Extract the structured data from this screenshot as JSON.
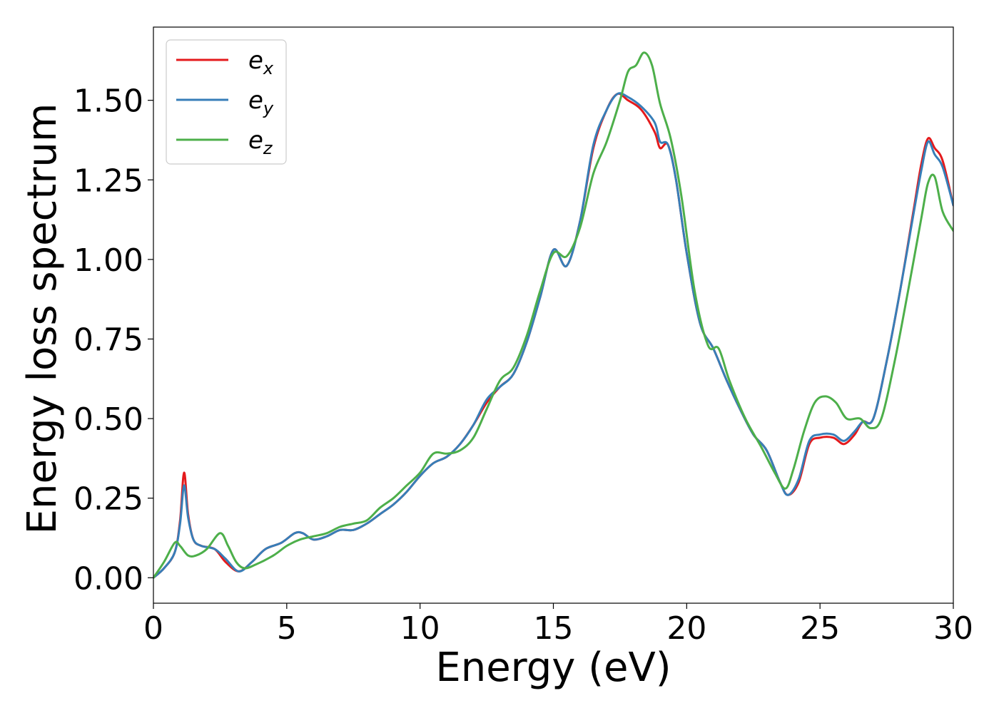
{
  "chart_data": {
    "type": "line",
    "title": "",
    "xlabel": "Energy (eV)",
    "ylabel": "Energy loss spectrum",
    "xlim": [
      0,
      30
    ],
    "ylim": [
      -0.08,
      1.73
    ],
    "x_ticks": [
      "0",
      "5",
      "10",
      "15",
      "20",
      "25",
      "30"
    ],
    "y_ticks": [
      "0.00",
      "0.25",
      "0.50",
      "0.75",
      "1.00",
      "1.25",
      "1.50"
    ],
    "grid": false,
    "legend_position": "top-left",
    "series": [
      {
        "name": "e_x",
        "label_base": "e",
        "label_sub": "x",
        "color": "#e41a1c",
        "x": [
          0,
          0.4,
          0.8,
          1.0,
          1.15,
          1.3,
          1.5,
          1.8,
          2.3,
          2.7,
          3.2,
          3.7,
          4.2,
          4.8,
          5.3,
          5.6,
          6.0,
          6.5,
          7.0,
          7.5,
          8.0,
          8.5,
          9.0,
          9.5,
          10.0,
          10.5,
          11.0,
          11.5,
          12.0,
          12.5,
          13.0,
          13.5,
          14.0,
          14.5,
          15.0,
          15.5,
          16.0,
          16.5,
          17.0,
          17.4,
          17.8,
          18.3,
          18.8,
          19.0,
          19.3,
          19.6,
          20.0,
          20.5,
          21.0,
          21.5,
          22.0,
          22.5,
          23.0,
          23.5,
          23.8,
          24.2,
          24.6,
          25.0,
          25.5,
          25.9,
          26.3,
          26.6,
          27.0,
          27.5,
          28.0,
          28.5,
          28.8,
          29.05,
          29.3,
          29.6,
          30.0
        ],
        "y": [
          0.0,
          0.03,
          0.08,
          0.18,
          0.33,
          0.2,
          0.12,
          0.1,
          0.09,
          0.05,
          0.02,
          0.05,
          0.09,
          0.11,
          0.14,
          0.14,
          0.12,
          0.13,
          0.15,
          0.15,
          0.17,
          0.2,
          0.23,
          0.27,
          0.32,
          0.36,
          0.38,
          0.42,
          0.48,
          0.55,
          0.6,
          0.64,
          0.74,
          0.88,
          1.03,
          0.98,
          1.12,
          1.35,
          1.47,
          1.52,
          1.5,
          1.47,
          1.4,
          1.35,
          1.36,
          1.25,
          1.02,
          0.8,
          0.72,
          0.62,
          0.53,
          0.45,
          0.4,
          0.3,
          0.26,
          0.3,
          0.42,
          0.44,
          0.44,
          0.42,
          0.45,
          0.49,
          0.5,
          0.68,
          0.9,
          1.15,
          1.3,
          1.38,
          1.35,
          1.31,
          1.17
        ]
      },
      {
        "name": "e_y",
        "label_base": "e",
        "label_sub": "y",
        "color": "#377eb8",
        "x": [
          0,
          0.4,
          0.8,
          1.0,
          1.15,
          1.3,
          1.5,
          1.8,
          2.3,
          2.7,
          3.2,
          3.7,
          4.2,
          4.8,
          5.3,
          5.6,
          6.0,
          6.5,
          7.0,
          7.5,
          8.0,
          8.5,
          9.0,
          9.5,
          10.0,
          10.5,
          11.0,
          11.5,
          12.0,
          12.5,
          13.0,
          13.5,
          14.0,
          14.5,
          15.0,
          15.5,
          16.0,
          16.5,
          17.0,
          17.4,
          17.8,
          18.3,
          18.8,
          19.0,
          19.3,
          19.6,
          20.0,
          20.5,
          21.0,
          21.5,
          22.0,
          22.5,
          23.0,
          23.5,
          23.8,
          24.2,
          24.6,
          25.0,
          25.5,
          25.9,
          26.3,
          26.6,
          27.0,
          27.5,
          28.0,
          28.5,
          28.8,
          29.05,
          29.3,
          29.6,
          30.0
        ],
        "y": [
          0.0,
          0.03,
          0.08,
          0.17,
          0.29,
          0.19,
          0.12,
          0.1,
          0.09,
          0.06,
          0.02,
          0.05,
          0.09,
          0.11,
          0.14,
          0.14,
          0.12,
          0.13,
          0.15,
          0.15,
          0.17,
          0.2,
          0.23,
          0.27,
          0.32,
          0.36,
          0.38,
          0.42,
          0.48,
          0.56,
          0.6,
          0.64,
          0.74,
          0.88,
          1.03,
          0.98,
          1.12,
          1.36,
          1.47,
          1.52,
          1.51,
          1.48,
          1.43,
          1.37,
          1.36,
          1.25,
          1.02,
          0.8,
          0.72,
          0.62,
          0.53,
          0.45,
          0.4,
          0.3,
          0.26,
          0.31,
          0.43,
          0.45,
          0.45,
          0.43,
          0.46,
          0.49,
          0.5,
          0.68,
          0.9,
          1.14,
          1.28,
          1.37,
          1.33,
          1.29,
          1.17
        ]
      },
      {
        "name": "e_z",
        "label_base": "e",
        "label_sub": "z",
        "color": "#4daf4a",
        "x": [
          0,
          0.4,
          0.8,
          1.0,
          1.3,
          1.6,
          2.0,
          2.5,
          2.8,
          3.1,
          3.4,
          3.8,
          4.5,
          5.0,
          5.5,
          6.0,
          6.5,
          7.0,
          7.5,
          8.0,
          8.5,
          9.0,
          9.5,
          10.0,
          10.5,
          11.0,
          11.5,
          12.0,
          12.5,
          13.0,
          13.5,
          14.0,
          14.5,
          15.0,
          15.5,
          16.0,
          16.5,
          17.0,
          17.5,
          17.8,
          18.1,
          18.4,
          18.7,
          19.0,
          19.4,
          19.8,
          20.3,
          20.8,
          21.2,
          21.6,
          22.2,
          22.8,
          23.3,
          23.7,
          24.0,
          24.4,
          24.8,
          25.2,
          25.6,
          26.0,
          26.5,
          26.9,
          27.3,
          27.8,
          28.3,
          28.8,
          29.05,
          29.3,
          29.6,
          30.0
        ],
        "y": [
          0.0,
          0.05,
          0.11,
          0.1,
          0.07,
          0.07,
          0.09,
          0.14,
          0.1,
          0.05,
          0.03,
          0.04,
          0.07,
          0.1,
          0.12,
          0.13,
          0.14,
          0.16,
          0.17,
          0.18,
          0.22,
          0.25,
          0.29,
          0.33,
          0.39,
          0.39,
          0.4,
          0.44,
          0.53,
          0.62,
          0.66,
          0.76,
          0.9,
          1.02,
          1.01,
          1.1,
          1.27,
          1.37,
          1.5,
          1.59,
          1.61,
          1.65,
          1.61,
          1.49,
          1.38,
          1.2,
          0.9,
          0.73,
          0.72,
          0.62,
          0.5,
          0.41,
          0.33,
          0.28,
          0.34,
          0.46,
          0.55,
          0.57,
          0.55,
          0.5,
          0.5,
          0.47,
          0.5,
          0.68,
          0.9,
          1.13,
          1.24,
          1.26,
          1.15,
          1.09
        ]
      }
    ]
  }
}
